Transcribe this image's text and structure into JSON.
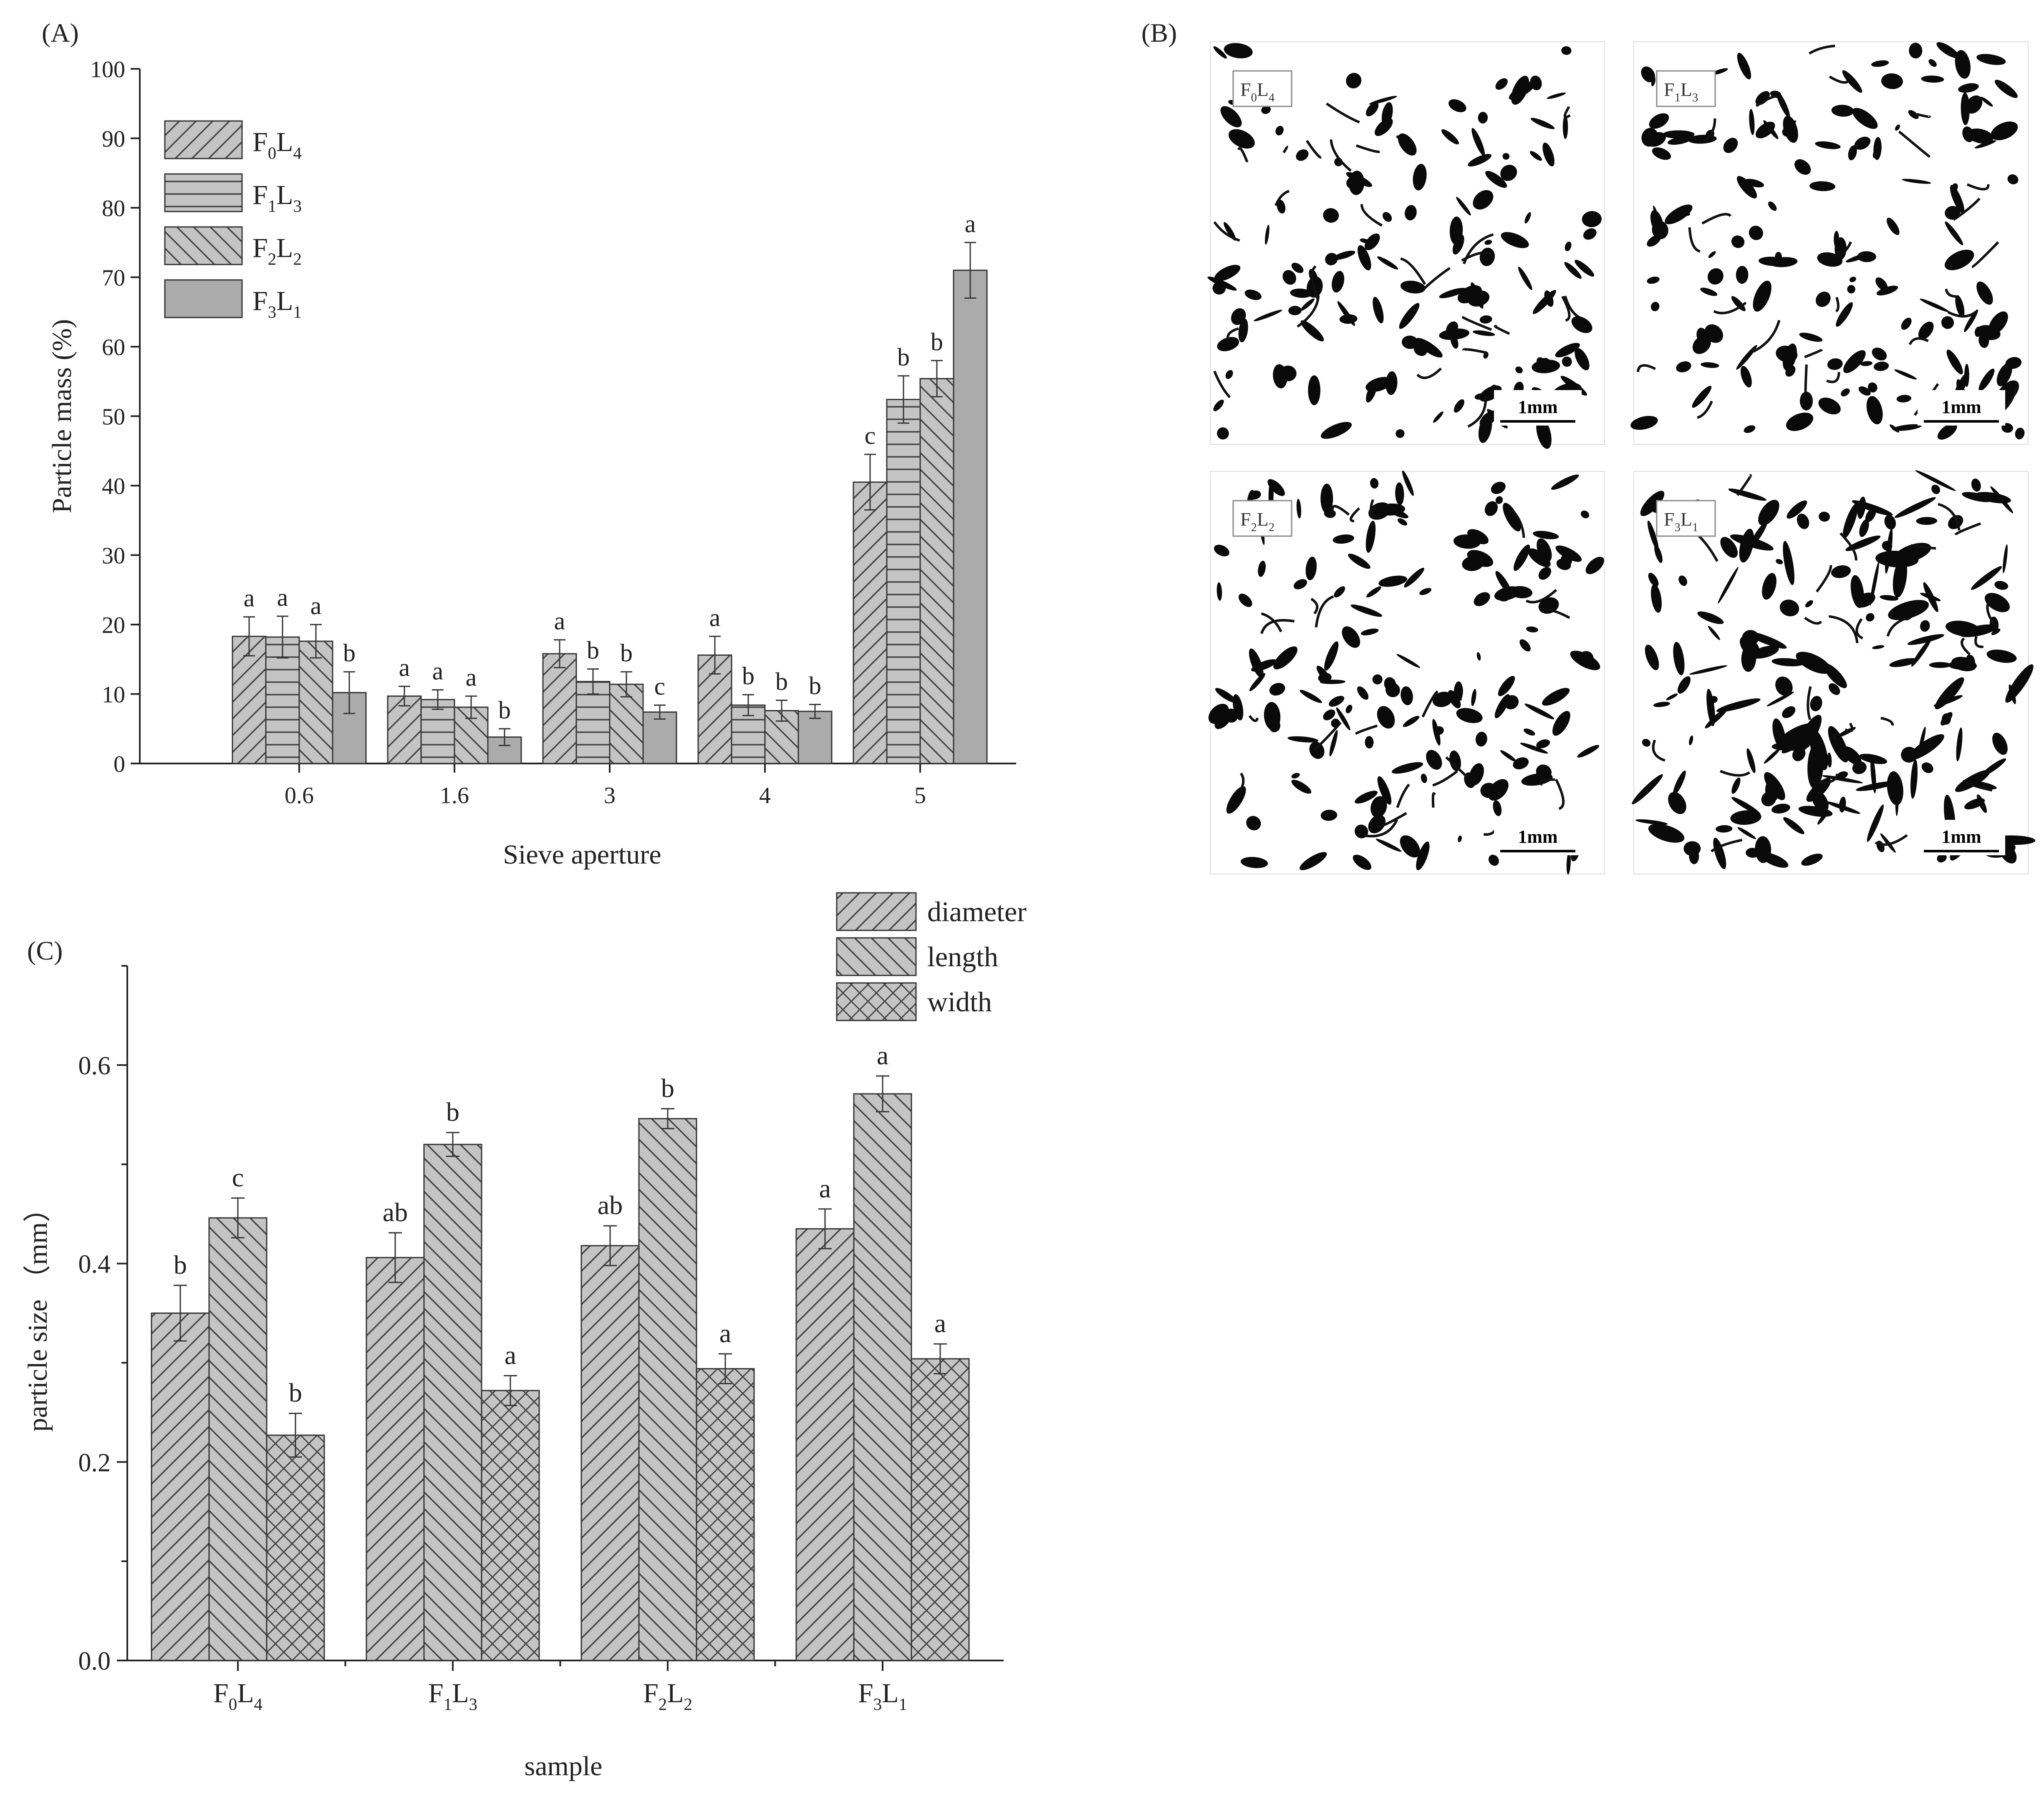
{
  "chart_data": [
    {
      "panel": "(A)",
      "type": "bar",
      "xlabel": "Sieve aperture",
      "ylabel": "Particle mass (%)",
      "ylim": [
        0,
        100
      ],
      "yticks": [
        0,
        10,
        20,
        30,
        40,
        50,
        60,
        70,
        80,
        90,
        100
      ],
      "categories": [
        "0.6",
        "1.6",
        "3",
        "4",
        "5"
      ],
      "legend_position": "top-left",
      "series": [
        {
          "name": "F0L4",
          "name_parts": [
            "F",
            "0",
            "L",
            "4"
          ],
          "pattern": "diag-fwd",
          "values": [
            18.3,
            9.7,
            15.8,
            15.6,
            40.5
          ],
          "errors": [
            2.8,
            1.4,
            2.0,
            2.7,
            4.0
          ],
          "letters": [
            "a",
            "a",
            "a",
            "a",
            "c"
          ]
        },
        {
          "name": "F1L3",
          "name_parts": [
            "F",
            "1",
            "L",
            "3"
          ],
          "pattern": "horizontal",
          "values": [
            18.2,
            9.2,
            11.8,
            8.4,
            52.4
          ],
          "errors": [
            3.0,
            1.4,
            1.8,
            1.5,
            3.4
          ],
          "letters": [
            "a",
            "a",
            "b",
            "b",
            "b"
          ]
        },
        {
          "name": "F2L2",
          "name_parts": [
            "F",
            "2",
            "L",
            "2"
          ],
          "pattern": "diag-back",
          "values": [
            17.6,
            8.1,
            11.4,
            7.6,
            55.4
          ],
          "errors": [
            2.4,
            1.6,
            1.8,
            1.5,
            2.6
          ],
          "letters": [
            "a",
            "a",
            "b",
            "b",
            "b"
          ]
        },
        {
          "name": "F3L1",
          "name_parts": [
            "F",
            "3",
            "L",
            "1"
          ],
          "pattern": "solid",
          "values": [
            10.2,
            3.8,
            7.4,
            7.5,
            71.0
          ],
          "errors": [
            3.0,
            1.2,
            1.0,
            1.0,
            4.0
          ],
          "letters": [
            "b",
            "b",
            "c",
            "b",
            "a"
          ]
        }
      ]
    },
    {
      "panel": "(B)",
      "type": "image-grid",
      "images": [
        {
          "tag_parts": [
            "F",
            "0",
            "L",
            "4"
          ],
          "scale": "1mm"
        },
        {
          "tag_parts": [
            "F",
            "1",
            "L",
            "3"
          ],
          "scale": "1mm"
        },
        {
          "tag_parts": [
            "F",
            "2",
            "L",
            "2"
          ],
          "scale": "1mm"
        },
        {
          "tag_parts": [
            "F",
            "3",
            "L",
            "1"
          ],
          "scale": "1mm"
        }
      ]
    },
    {
      "panel": "(C)",
      "type": "bar",
      "xlabel": "sample",
      "ylabel": "particle size （mm）",
      "ylim": [
        0,
        0.7
      ],
      "yticks": [
        "0.0",
        "0.2",
        "0.4",
        "0.6"
      ],
      "categories": [
        "F0L4",
        "F1L3",
        "F2L2",
        "F3L1"
      ],
      "category_parts": [
        [
          "F",
          "0",
          "L",
          "4"
        ],
        [
          "F",
          "1",
          "L",
          "3"
        ],
        [
          "F",
          "2",
          "L",
          "2"
        ],
        [
          "F",
          "3",
          "L",
          "1"
        ]
      ],
      "legend_position": "top-right",
      "series": [
        {
          "name": "diameter",
          "pattern": "diag-fwd",
          "values": [
            0.35,
            0.406,
            0.418,
            0.435
          ],
          "errors": [
            0.028,
            0.025,
            0.02,
            0.02
          ],
          "letters": [
            "b",
            "ab",
            "ab",
            "a"
          ]
        },
        {
          "name": "length",
          "pattern": "diag-back",
          "values": [
            0.446,
            0.52,
            0.546,
            0.571
          ],
          "errors": [
            0.02,
            0.012,
            0.01,
            0.018
          ],
          "letters": [
            "c",
            "b",
            "b",
            "a"
          ]
        },
        {
          "name": "width",
          "pattern": "cross",
          "values": [
            0.227,
            0.272,
            0.294,
            0.304
          ],
          "errors": [
            0.022,
            0.015,
            0.015,
            0.015
          ],
          "letters": [
            "b",
            "a",
            "a",
            "a"
          ]
        }
      ]
    }
  ]
}
